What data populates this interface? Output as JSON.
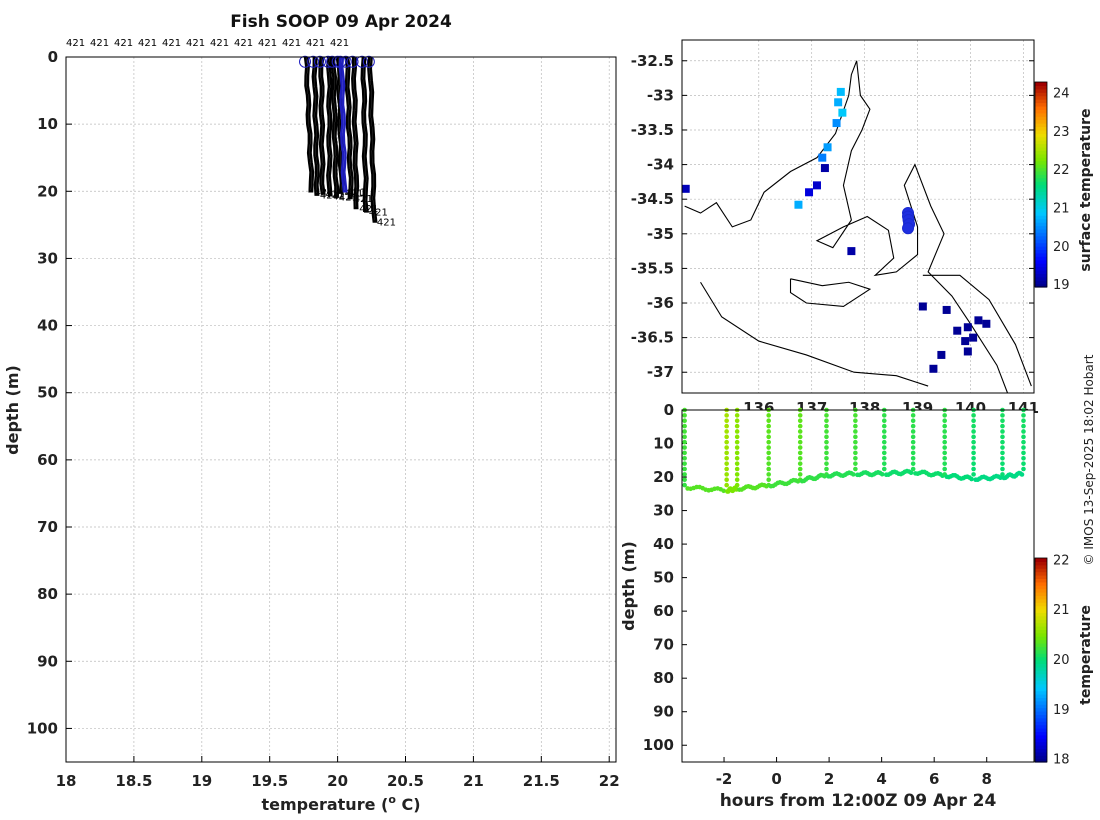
{
  "chart_data": [
    {
      "id": "profile",
      "type": "line",
      "title": "Fish SOOP 09 Apr 2024",
      "xlabel": "temperature (",
      "xlabel_sup": "o",
      "xlabel_unit": " C)",
      "ylabel": "depth (m)",
      "xlim": [
        18,
        22.05
      ],
      "ylim": [
        0,
        105
      ],
      "xticks": [
        "18",
        "18.5",
        "19",
        "19.5",
        "20",
        "20.5",
        "21",
        "21.5",
        "22"
      ],
      "yticks": [
        "0",
        "10",
        "20",
        "30",
        "40",
        "50",
        "60",
        "70",
        "80",
        "90",
        "100"
      ],
      "top_labels": [
        "421",
        "421",
        "421",
        "421",
        "421",
        "421",
        "421",
        "421",
        "421",
        "421",
        "421",
        "421"
      ],
      "end_label": "421",
      "profiles": [
        {
          "surface_temp": 19.76,
          "bottom_temp": 19.8,
          "max_depth": 20.0
        },
        {
          "surface_temp": 19.82,
          "bottom_temp": 19.84,
          "max_depth": 20.5
        },
        {
          "surface_temp": 19.87,
          "bottom_temp": 19.88,
          "max_depth": 20.3
        },
        {
          "surface_temp": 19.93,
          "bottom_temp": 19.93,
          "max_depth": 20.6
        },
        {
          "surface_temp": 19.96,
          "bottom_temp": 19.98,
          "max_depth": 20.8
        },
        {
          "surface_temp": 20.0,
          "bottom_temp": 20.02,
          "max_depth": 20.2
        },
        {
          "surface_temp": 20.06,
          "bottom_temp": 20.09,
          "max_depth": 21.0
        },
        {
          "surface_temp": 20.11,
          "bottom_temp": 20.13,
          "max_depth": 22.5
        },
        {
          "surface_temp": 20.18,
          "bottom_temp": 20.2,
          "max_depth": 23.0
        },
        {
          "surface_temp": 20.23,
          "bottom_temp": 20.26,
          "max_depth": 24.5
        }
      ],
      "highlight_profile": {
        "surface_temp": 20.02,
        "bottom_temp": 20.04,
        "max_depth": 20.0,
        "color": "#1f1fbf"
      }
    },
    {
      "id": "map",
      "type": "heatmap",
      "lat_ticks": [
        "-32.5",
        "-33",
        "-33.5",
        "-34",
        "-34.5",
        "-35",
        "-35.5",
        "-36",
        "-36.5",
        "-37"
      ],
      "lon_ticks": [
        "136",
        "137",
        "138",
        "139",
        "140",
        "141"
      ],
      "lat_range": [
        -37.3,
        -32.2
      ],
      "lon_range": [
        134.55,
        141.2
      ],
      "colorbar_label": "surface temperature",
      "colorbar_ticks": [
        "19",
        "20",
        "21",
        "22",
        "23",
        "24"
      ],
      "colorbar_range": [
        18.95,
        24.3
      ],
      "sst_cells": [
        {
          "lon": 137.55,
          "lat": -32.95,
          "value": 20.8
        },
        {
          "lon": 137.5,
          "lat": -33.1,
          "value": 20.7
        },
        {
          "lon": 137.58,
          "lat": -33.25,
          "value": 20.9
        },
        {
          "lon": 137.47,
          "lat": -33.4,
          "value": 20.5
        },
        {
          "lon": 137.3,
          "lat": -33.75,
          "value": 20.6
        },
        {
          "lon": 137.2,
          "lat": -33.9,
          "value": 20.4
        },
        {
          "lon": 137.25,
          "lat": -34.05,
          "value": 19.1
        },
        {
          "lon": 137.1,
          "lat": -34.3,
          "value": 19.3
        },
        {
          "lon": 136.95,
          "lat": -34.4,
          "value": 19.4
        },
        {
          "lon": 136.75,
          "lat": -34.58,
          "value": 20.7
        },
        {
          "lon": 134.62,
          "lat": -34.35,
          "value": 19.2
        },
        {
          "lon": 137.75,
          "lat": -35.25,
          "value": 19.1
        },
        {
          "lon": 139.1,
          "lat": -36.05,
          "value": 19.0
        },
        {
          "lon": 139.55,
          "lat": -36.1,
          "value": 19.0
        },
        {
          "lon": 139.75,
          "lat": -36.4,
          "value": 19.0
        },
        {
          "lon": 139.95,
          "lat": -36.35,
          "value": 19.0
        },
        {
          "lon": 140.15,
          "lat": -36.25,
          "value": 19.0
        },
        {
          "lon": 140.3,
          "lat": -36.3,
          "value": 19.0
        },
        {
          "lon": 140.05,
          "lat": -36.5,
          "value": 19.0
        },
        {
          "lon": 139.9,
          "lat": -36.55,
          "value": 19.0
        },
        {
          "lon": 139.95,
          "lat": -36.7,
          "value": 19.0
        },
        {
          "lon": 139.45,
          "lat": -36.75,
          "value": 19.0
        },
        {
          "lon": 139.3,
          "lat": -36.95,
          "value": 19.0
        }
      ],
      "track": [
        {
          "lon": 138.82,
          "lat": -34.7
        },
        {
          "lon": 138.82,
          "lat": -34.75
        },
        {
          "lon": 138.83,
          "lat": -34.8
        },
        {
          "lon": 138.84,
          "lat": -34.86
        },
        {
          "lon": 138.82,
          "lat": -34.92
        }
      ],
      "track_color": "#1f2fe0"
    },
    {
      "id": "section",
      "type": "scatter",
      "xlabel": "hours from 12:00Z 09 Apr 24",
      "ylabel": "depth (m)",
      "xlim": [
        -3.6,
        9.8
      ],
      "ylim": [
        0,
        105
      ],
      "xticks": [
        "-2",
        "0",
        "2",
        "4",
        "6",
        "8"
      ],
      "yticks": [
        "0",
        "10",
        "20",
        "30",
        "40",
        "50",
        "60",
        "70",
        "80",
        "90",
        "100"
      ],
      "colorbar_label": "temperature",
      "colorbar_ticks": [
        "18",
        "19",
        "20",
        "21",
        "22"
      ],
      "colorbar_range": [
        17.95,
        22.05
      ],
      "casts": [
        {
          "hour": -3.5,
          "bottom": 23.0,
          "temp": 20.2
        },
        {
          "hour": -1.9,
          "bottom": 24.0,
          "temp": 20.6
        },
        {
          "hour": -1.5,
          "bottom": 23.5,
          "temp": 20.5
        },
        {
          "hour": -0.3,
          "bottom": 22.5,
          "temp": 20.3
        },
        {
          "hour": 0.9,
          "bottom": 21.0,
          "temp": 20.3
        },
        {
          "hour": 1.9,
          "bottom": 19.5,
          "temp": 20.2
        },
        {
          "hour": 3.0,
          "bottom": 19.0,
          "temp": 20.2
        },
        {
          "hour": 4.1,
          "bottom": 19.0,
          "temp": 20.1
        },
        {
          "hour": 5.2,
          "bottom": 18.5,
          "temp": 20.1
        },
        {
          "hour": 6.4,
          "bottom": 19.5,
          "temp": 20.1
        },
        {
          "hour": 7.5,
          "bottom": 20.5,
          "temp": 20.0
        },
        {
          "hour": 8.6,
          "bottom": 20.0,
          "temp": 20.0
        },
        {
          "hour": 9.4,
          "bottom": 19.0,
          "temp": 20.0
        }
      ]
    }
  ],
  "credit": "© IMOS 13-Sep-2025 18:02 Hobart",
  "colors": {
    "black": "#000000",
    "highlight": "#1f1fbf"
  }
}
